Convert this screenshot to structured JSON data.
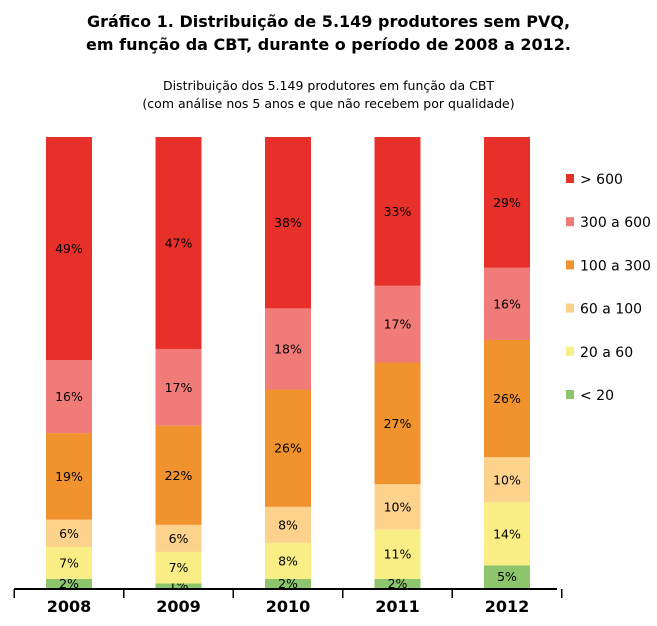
{
  "header": {
    "title_line1": "Gráfico 1. Distribuição de 5.149 produtores sem PVQ,",
    "title_line2": "em função da CBT, durante o período de 2008 a 2012.",
    "subtitle_line1": "Distribuição dos 5.149 produtores em função da CBT",
    "subtitle_line2": "(com análise nos 5 anos e que não recebem por qualidade)"
  },
  "chart_data": {
    "type": "bar",
    "stacked": true,
    "normalized_percent": true,
    "categories": [
      "2008",
      "2009",
      "2010",
      "2011",
      "2012"
    ],
    "series": [
      {
        "name": "< 20",
        "color": "#8cc56b",
        "values": [
          2,
          1,
          2,
          2,
          5
        ],
        "labels": [
          "2%",
          "1%",
          "2%",
          "2%",
          "5%"
        ]
      },
      {
        "name": "20 a 60",
        "color": "#f8ee85",
        "values": [
          7,
          7,
          8,
          11,
          14
        ],
        "labels": [
          "7%",
          "7%",
          "8%",
          "11%",
          "14%"
        ]
      },
      {
        "name": "60 a 100",
        "color": "#fcd28c",
        "values": [
          6,
          6,
          8,
          10,
          10
        ],
        "labels": [
          "6%",
          "6%",
          "8%",
          "10%",
          "10%"
        ]
      },
      {
        "name": "100 a 300",
        "color": "#f0922e",
        "values": [
          19,
          22,
          26,
          27,
          26
        ],
        "labels": [
          "19%",
          "22%",
          "26%",
          "27%",
          "26%"
        ]
      },
      {
        "name": "300 a 600",
        "color": "#f07b78",
        "values": [
          16,
          17,
          18,
          17,
          16
        ],
        "labels": [
          "16%",
          "17%",
          "18%",
          "17%",
          "16%"
        ]
      },
      {
        "name": "> 600",
        "color": "#e8302b",
        "values": [
          49,
          47,
          38,
          33,
          29
        ],
        "labels": [
          "49%",
          "47%",
          "38%",
          "33%",
          "29%"
        ]
      }
    ],
    "legend_order": [
      "> 600",
      "300 a 600",
      "100 a 300",
      "60 a 100",
      "20 a 60",
      "< 20"
    ],
    "legend_position": "right",
    "ylim": [
      0,
      100
    ],
    "grid": false
  }
}
